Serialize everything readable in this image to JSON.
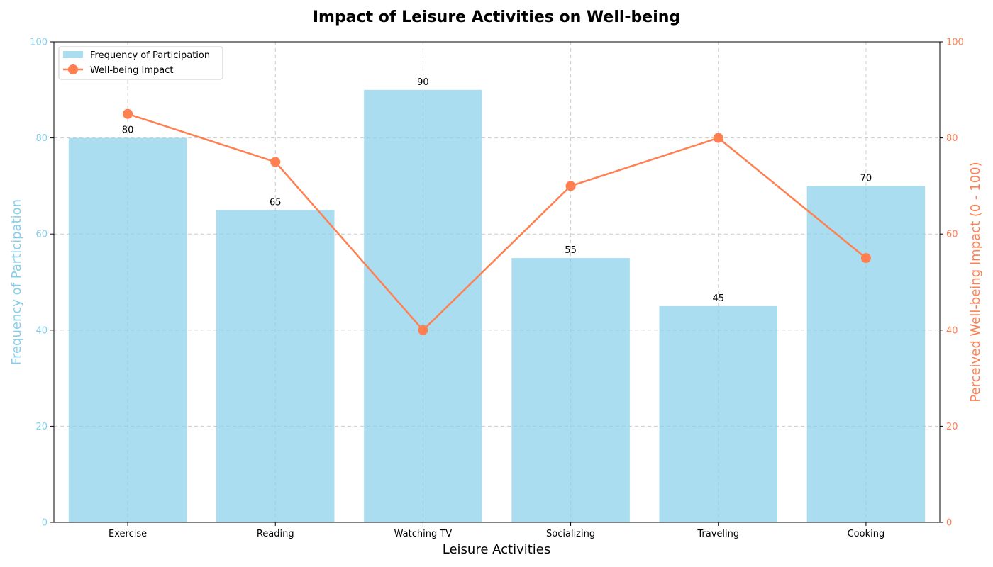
{
  "chart_data": {
    "type": "bar",
    "title": "Impact of Leisure Activities on Well-being",
    "xlabel": "Leisure Activities",
    "categories": [
      "Exercise",
      "Reading",
      "Watching TV",
      "Socializing",
      "Traveling",
      "Cooking"
    ],
    "series": [
      {
        "name": "Frequency of Participation",
        "type": "bar",
        "axis": "left",
        "color": "#87CEEB",
        "values": [
          80,
          65,
          90,
          55,
          45,
          70
        ]
      },
      {
        "name": "Well-being Impact",
        "type": "line",
        "axis": "right",
        "color": "#FF7F50",
        "values": [
          85,
          75,
          40,
          70,
          80,
          55
        ]
      }
    ],
    "y_left": {
      "label": "Frequency of Participation",
      "range": [
        0,
        100
      ],
      "ticks": [
        0,
        20,
        40,
        60,
        80,
        100
      ],
      "color": "#87CEEB"
    },
    "y_right": {
      "label": "Perceived Well-being Impact (0 - 100)",
      "range": [
        0,
        100
      ],
      "ticks": [
        0,
        20,
        40,
        60,
        80,
        100
      ],
      "color": "#FF7F50"
    },
    "grid": true,
    "legend_position": "top-left",
    "bar_value_labels": true
  }
}
